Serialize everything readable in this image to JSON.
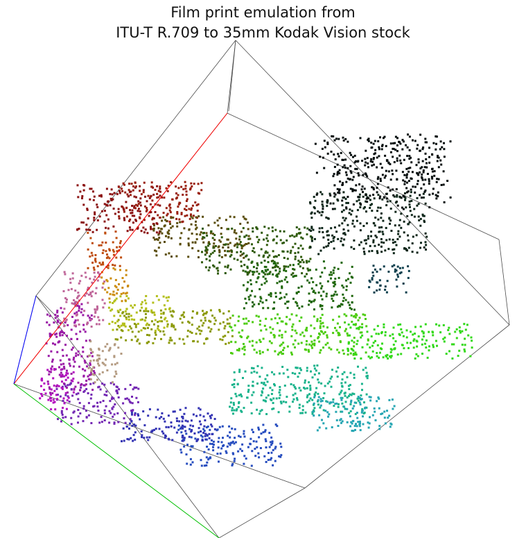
{
  "chart_data": {
    "type": "scatter",
    "title": [
      "Film print emulation from",
      "ITU-T R.709 to 35mm Kodak Vision stock"
    ],
    "projection": "3d-cube",
    "axes": [
      {
        "name": "R",
        "color": "#ff0000"
      },
      {
        "name": "G",
        "color": "#00c000"
      },
      {
        "name": "B",
        "color": "#0000ff"
      }
    ],
    "series": [
      {
        "points": [
          {
            "rgb": [
              0.55,
              0.05,
              0.05
            ],
            "color": "#8b1010"
          },
          {
            "rgb": [
              0.6,
              0.1,
              0.05
            ],
            "color": "#992010"
          },
          {
            "rgb": [
              0.35,
              0.3,
              0.05
            ],
            "color": "#5a4d0a"
          },
          {
            "rgb": [
              0.2,
              0.35,
              0.05
            ],
            "color": "#2f5a0a"
          },
          {
            "rgb": [
              0.1,
              0.4,
              0.05
            ],
            "color": "#1f660a"
          },
          {
            "rgb": [
              0.05,
              0.15,
              0.1
            ],
            "color": "#0d2619"
          },
          {
            "rgb": [
              0.02,
              0.05,
              0.05
            ],
            "color": "#050d0d"
          },
          {
            "rgb": [
              0.05,
              0.25,
              0.3
            ],
            "color": "#0d3f4d"
          },
          {
            "rgb": [
              0.55,
              0.6,
              0.05
            ],
            "color": "#8c9a0a"
          },
          {
            "rgb": [
              0.7,
              0.75,
              0.1
            ],
            "color": "#b3bf1a"
          },
          {
            "rgb": [
              0.3,
              0.8,
              0.05
            ],
            "color": "#4ccc0d"
          },
          {
            "rgb": [
              0.2,
              0.85,
              0.1
            ],
            "color": "#33d91a"
          },
          {
            "rgb": [
              0.1,
              0.7,
              0.55
            ],
            "color": "#1ab38c"
          },
          {
            "rgb": [
              0.15,
              0.65,
              0.7
            ],
            "color": "#26a6b3"
          },
          {
            "rgb": [
              0.15,
              0.3,
              0.75
            ],
            "color": "#264dbf"
          },
          {
            "rgb": [
              0.2,
              0.2,
              0.7
            ],
            "color": "#3333b3"
          },
          {
            "rgb": [
              0.45,
              0.15,
              0.7
            ],
            "color": "#7326b3"
          },
          {
            "rgb": [
              0.6,
              0.1,
              0.65
            ],
            "color": "#9a1aa6"
          },
          {
            "rgb": [
              0.7,
              0.05,
              0.75
            ],
            "color": "#b30dbf"
          },
          {
            "rgb": [
              0.75,
              0.4,
              0.6
            ],
            "color": "#bf6699"
          },
          {
            "rgb": [
              0.7,
              0.6,
              0.5
            ],
            "color": "#b39a80"
          },
          {
            "rgb": [
              0.75,
              0.3,
              0.05
            ],
            "color": "#bf4d0d"
          },
          {
            "rgb": [
              0.8,
              0.55,
              0.05
            ],
            "color": "#cc8c0d"
          }
        ]
      }
    ]
  },
  "colors": {
    "cube_edge": "#4a4a4a",
    "background": "#ffffff"
  }
}
